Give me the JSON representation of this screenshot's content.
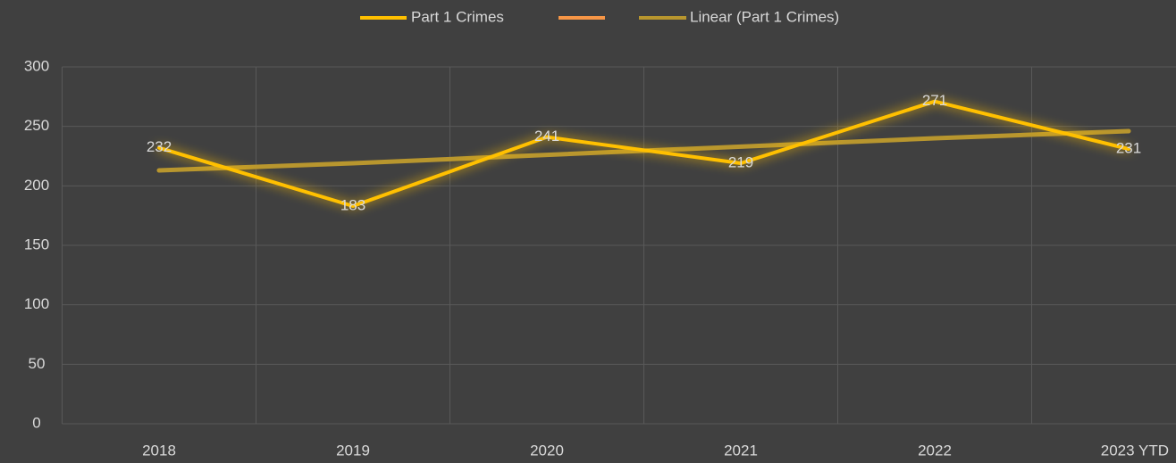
{
  "chart_data": {
    "type": "line",
    "categories": [
      "2018",
      "2019",
      "2020",
      "2021",
      "2022",
      "2023 YTD"
    ],
    "series": [
      {
        "name": "Part 1 Crimes",
        "color": "#ffc000",
        "values": [
          232,
          183,
          241,
          219,
          271,
          231
        ],
        "data_labels": true
      },
      {
        "name": "Linear (Part 1 Crimes)",
        "color": "#b8962e",
        "values": [
          213,
          219,
          226,
          233,
          240,
          246
        ],
        "data_labels": false
      }
    ],
    "ylim": [
      0,
      300
    ],
    "yticks": [
      0,
      50,
      100,
      150,
      200,
      250,
      300
    ],
    "grid": true,
    "legend": "top"
  }
}
